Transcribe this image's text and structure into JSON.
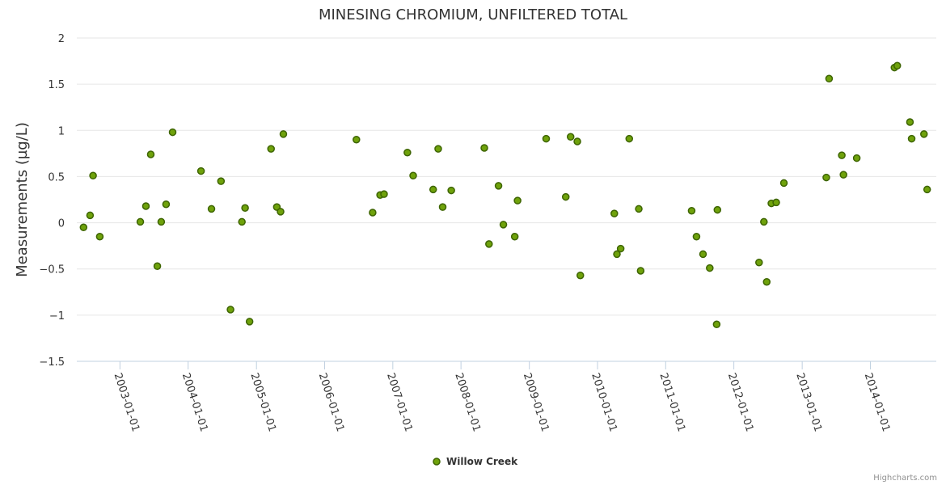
{
  "chart_data": {
    "type": "scatter",
    "title": "MINESING CHROMIUM, UNFILTERED TOTAL",
    "ylabel": "Measurements (µg/L)",
    "xlabel": "",
    "ylim": [
      -1.5,
      2
    ],
    "yticks": [
      "-1.5",
      "-1",
      "-0.5",
      "0",
      "0.5",
      "1",
      "1.5",
      "2"
    ],
    "xlim": [
      "2002-05-15",
      "2014-12-20"
    ],
    "xticks": [
      "2003-01-01",
      "2004-01-01",
      "2005-01-01",
      "2006-01-01",
      "2007-01-01",
      "2008-01-01",
      "2009-01-01",
      "2010-01-01",
      "2011-01-01",
      "2012-01-01",
      "2013-01-01",
      "2014-01-01"
    ],
    "grid": true,
    "legend": "bottom-center",
    "colors": {
      "marker_fill": "#6fa20b",
      "marker_stroke": "#3d6400"
    },
    "series": [
      {
        "name": "Willow Creek",
        "points": [
          [
            "2002-06-20",
            -0.05
          ],
          [
            "2002-07-25",
            0.08
          ],
          [
            "2002-08-10",
            0.51
          ],
          [
            "2002-09-15",
            -0.15
          ],
          [
            "2003-04-20",
            0.01
          ],
          [
            "2003-05-20",
            0.18
          ],
          [
            "2003-06-15",
            0.74
          ],
          [
            "2003-07-20",
            -0.47
          ],
          [
            "2003-08-10",
            0.01
          ],
          [
            "2003-09-05",
            0.2
          ],
          [
            "2003-10-10",
            0.98
          ],
          [
            "2004-03-10",
            0.56
          ],
          [
            "2004-05-05",
            0.15
          ],
          [
            "2004-06-25",
            0.45
          ],
          [
            "2004-08-15",
            -0.94
          ],
          [
            "2004-10-15",
            0.01
          ],
          [
            "2004-11-01",
            0.16
          ],
          [
            "2004-11-25",
            -1.07
          ],
          [
            "2005-03-20",
            0.8
          ],
          [
            "2005-04-20",
            0.17
          ],
          [
            "2005-05-10",
            0.12
          ],
          [
            "2005-05-25",
            0.96
          ],
          [
            "2006-06-20",
            0.9
          ],
          [
            "2006-09-15",
            0.11
          ],
          [
            "2006-10-25",
            0.3
          ],
          [
            "2006-11-15",
            0.31
          ],
          [
            "2007-03-20",
            0.76
          ],
          [
            "2007-04-20",
            0.51
          ],
          [
            "2007-08-05",
            0.36
          ],
          [
            "2007-09-01",
            0.8
          ],
          [
            "2007-09-25",
            0.17
          ],
          [
            "2007-11-10",
            0.35
          ],
          [
            "2008-05-05",
            0.81
          ],
          [
            "2008-05-30",
            -0.23
          ],
          [
            "2008-07-20",
            0.4
          ],
          [
            "2008-08-15",
            -0.02
          ],
          [
            "2008-10-15",
            -0.15
          ],
          [
            "2008-10-30",
            0.24
          ],
          [
            "2009-04-01",
            0.91
          ],
          [
            "2009-07-15",
            0.28
          ],
          [
            "2009-08-10",
            0.93
          ],
          [
            "2009-09-15",
            0.88
          ],
          [
            "2009-10-01",
            -0.57
          ],
          [
            "2010-04-01",
            0.1
          ],
          [
            "2010-04-15",
            -0.34
          ],
          [
            "2010-05-05",
            -0.28
          ],
          [
            "2010-06-20",
            0.91
          ],
          [
            "2010-08-10",
            0.15
          ],
          [
            "2010-08-20",
            -0.52
          ],
          [
            "2011-05-20",
            0.13
          ],
          [
            "2011-06-15",
            -0.15
          ],
          [
            "2011-07-20",
            -0.34
          ],
          [
            "2011-08-25",
            -0.49
          ],
          [
            "2011-10-01",
            -1.1
          ],
          [
            "2011-10-05",
            0.14
          ],
          [
            "2012-05-15",
            -0.43
          ],
          [
            "2012-06-10",
            0.01
          ],
          [
            "2012-06-25",
            -0.64
          ],
          [
            "2012-07-20",
            0.21
          ],
          [
            "2012-08-15",
            0.22
          ],
          [
            "2012-09-25",
            0.43
          ],
          [
            "2013-05-10",
            0.49
          ],
          [
            "2013-05-25",
            1.56
          ],
          [
            "2013-08-01",
            0.73
          ],
          [
            "2013-08-10",
            0.52
          ],
          [
            "2013-10-20",
            0.7
          ],
          [
            "2014-05-10",
            1.68
          ],
          [
            "2014-05-25",
            1.7
          ],
          [
            "2014-08-01",
            1.09
          ],
          [
            "2014-08-10",
            0.91
          ],
          [
            "2014-10-15",
            0.96
          ],
          [
            "2014-11-01",
            0.36
          ]
        ]
      }
    ]
  },
  "credits": "Highcharts.com"
}
